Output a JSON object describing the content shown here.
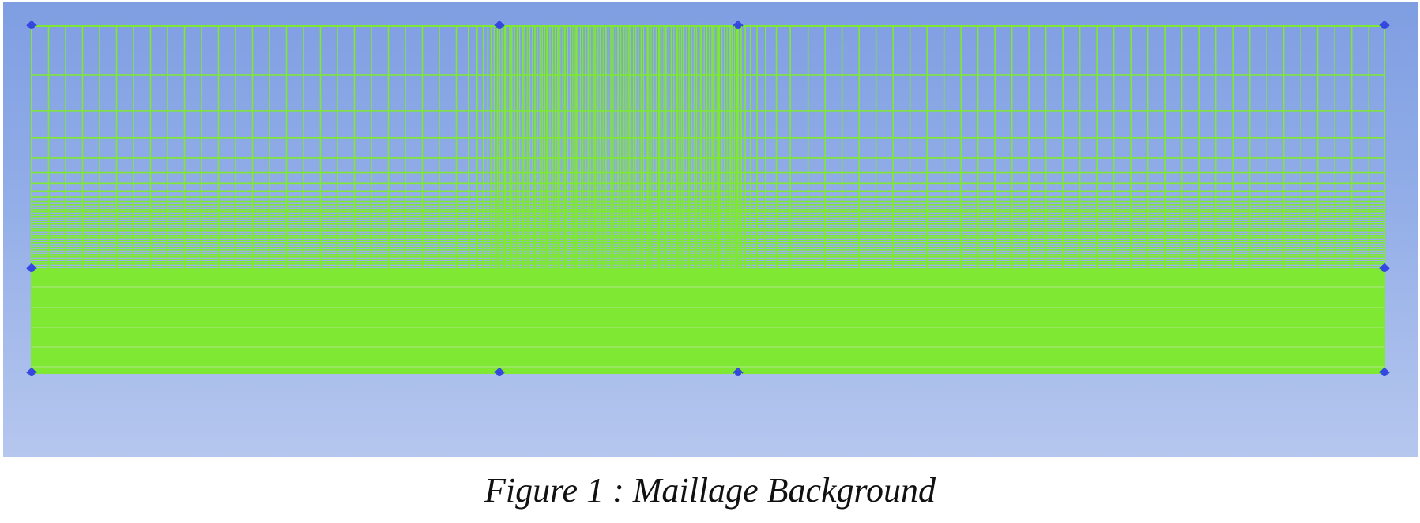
{
  "caption": "Figure 1 : Maillage Background",
  "colors": {
    "mesh_line": "#7ee832",
    "viewport_top": "#7f9ee2",
    "viewport_bottom": "#b6c7ee",
    "block_vertex": "#3347e0"
  },
  "icons": {
    "block_vertex": "vertex-marker-icon"
  }
}
